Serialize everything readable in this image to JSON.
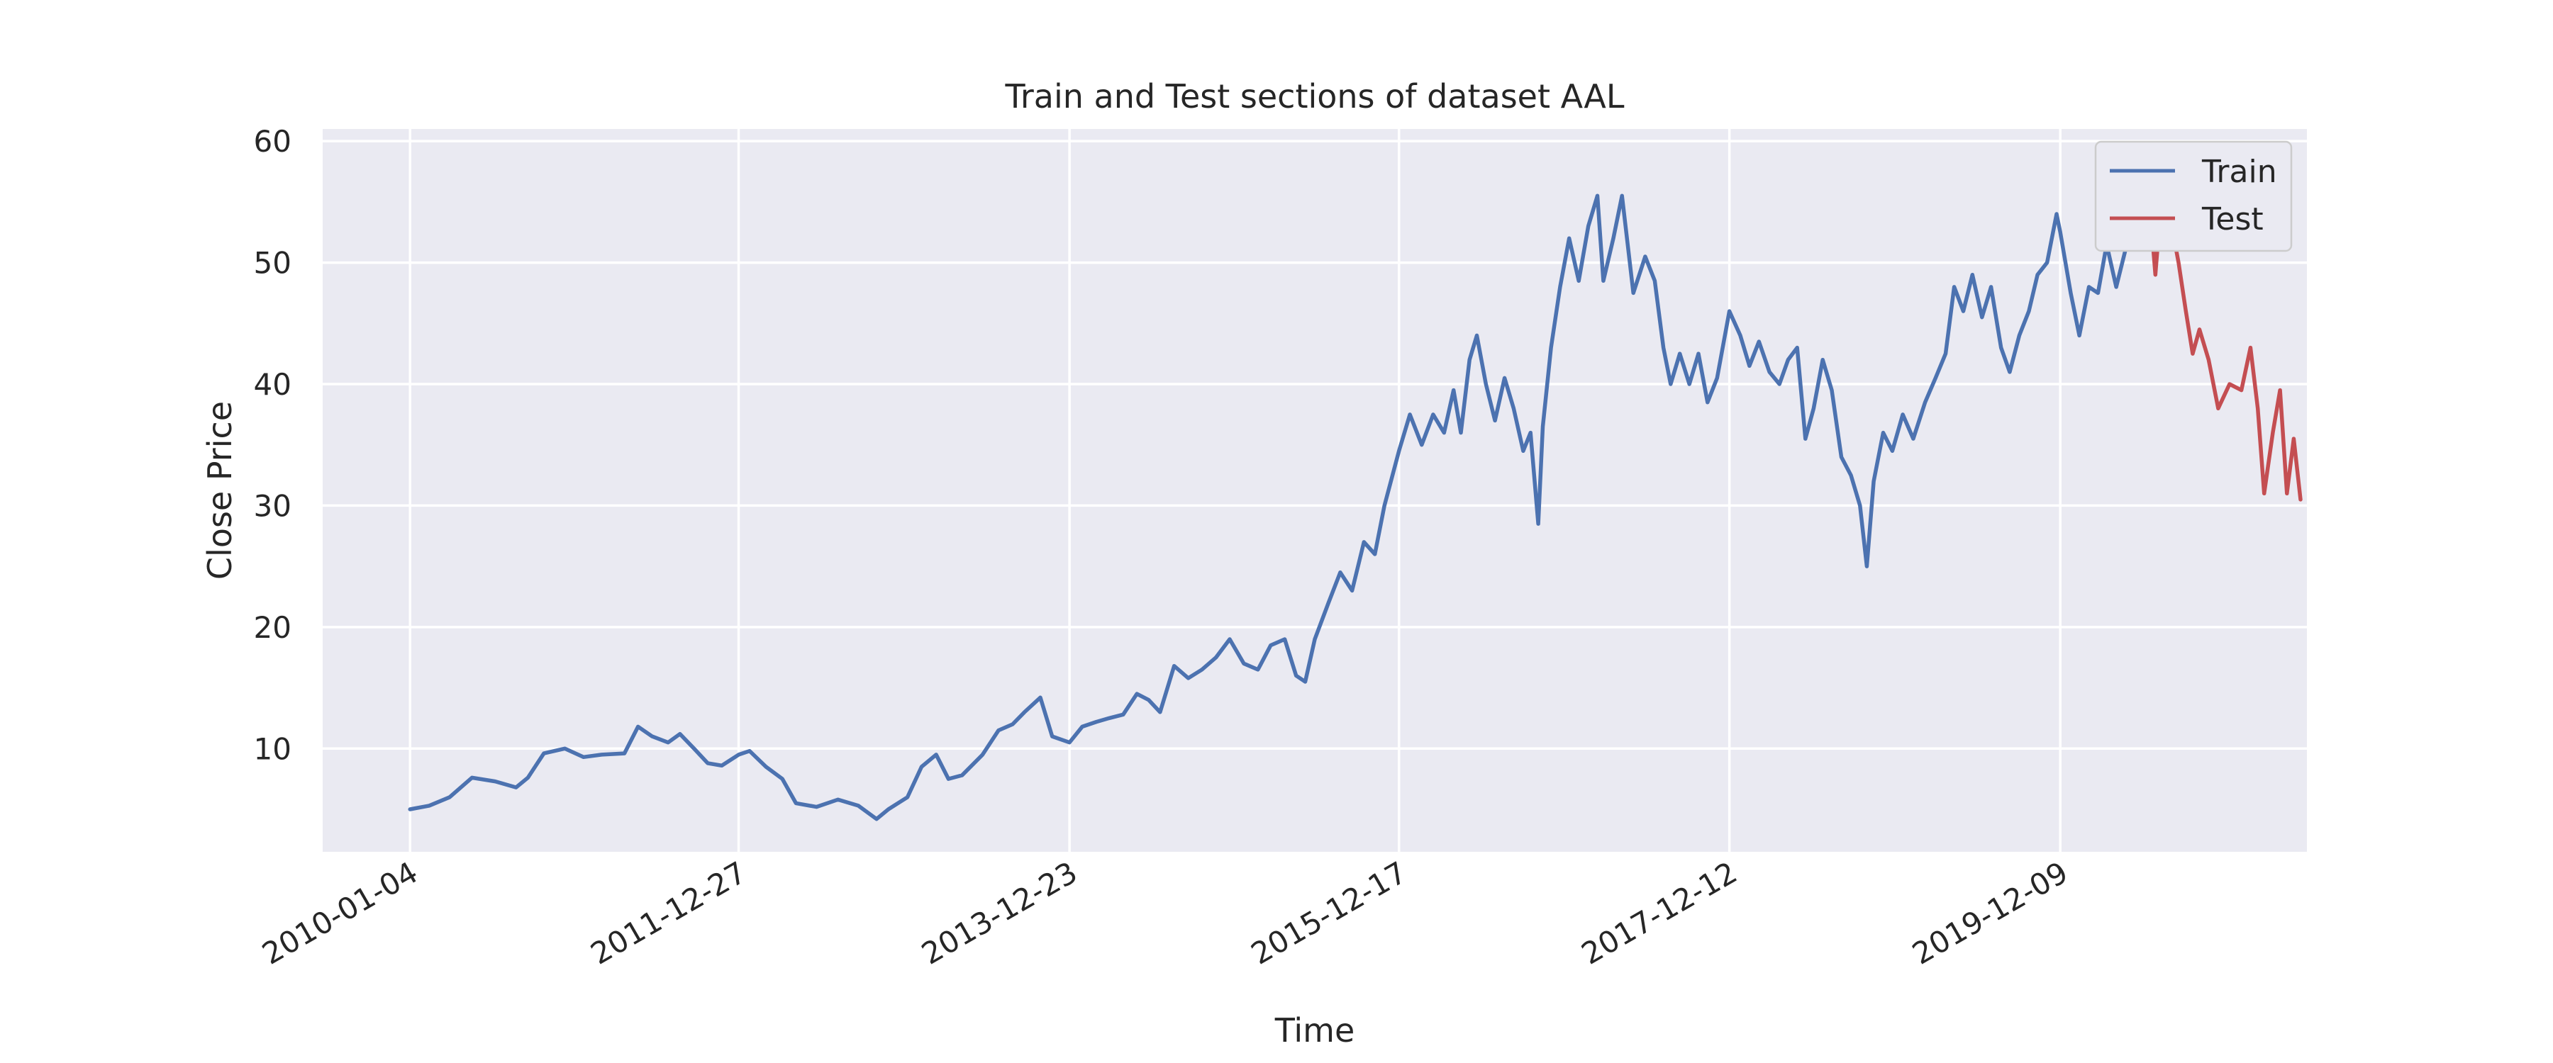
{
  "chart_data": {
    "type": "line",
    "title": "Train and Test sections of dataset AAL",
    "xlabel": "Time",
    "ylabel": "Close Price",
    "x_tick_labels": [
      "2010-01-04",
      "2011-12-27",
      "2013-12-23",
      "2015-12-17",
      "2017-12-12",
      "2019-12-09"
    ],
    "y_ticks": [
      10,
      20,
      30,
      40,
      50,
      60
    ],
    "ylim": [
      1.5,
      61
    ],
    "xlim": [
      "2009-06-26",
      "2021-06-03"
    ],
    "grid": true,
    "legend_position": "upper right",
    "background": "#eaeaf2",
    "series": [
      {
        "name": "Train",
        "color": "#4c72b0",
        "points": [
          [
            "2010-01-04",
            5.0
          ],
          [
            "2010-02-15",
            5.3
          ],
          [
            "2010-04-01",
            6.0
          ],
          [
            "2010-05-20",
            7.6
          ],
          [
            "2010-07-10",
            7.3
          ],
          [
            "2010-08-25",
            6.8
          ],
          [
            "2010-09-20",
            7.6
          ],
          [
            "2010-10-25",
            9.6
          ],
          [
            "2010-12-10",
            10.0
          ],
          [
            "2011-01-20",
            9.3
          ],
          [
            "2011-03-01",
            9.5
          ],
          [
            "2011-04-20",
            9.6
          ],
          [
            "2011-05-20",
            11.8
          ],
          [
            "2011-06-20",
            11.0
          ],
          [
            "2011-07-25",
            10.5
          ],
          [
            "2011-08-20",
            11.2
          ],
          [
            "2011-09-20",
            10.0
          ],
          [
            "2011-10-20",
            8.8
          ],
          [
            "2011-11-20",
            8.6
          ],
          [
            "2011-12-27",
            9.5
          ],
          [
            "2012-01-20",
            9.8
          ],
          [
            "2012-02-25",
            8.5
          ],
          [
            "2012-04-01",
            7.5
          ],
          [
            "2012-05-01",
            5.5
          ],
          [
            "2012-06-15",
            5.2
          ],
          [
            "2012-08-01",
            5.8
          ],
          [
            "2012-09-15",
            5.3
          ],
          [
            "2012-10-25",
            4.2
          ],
          [
            "2012-11-20",
            5.0
          ],
          [
            "2013-01-01",
            6.0
          ],
          [
            "2013-02-01",
            8.5
          ],
          [
            "2013-03-05",
            9.5
          ],
          [
            "2013-04-01",
            7.5
          ],
          [
            "2013-05-01",
            7.8
          ],
          [
            "2013-06-15",
            9.5
          ],
          [
            "2013-07-20",
            11.5
          ],
          [
            "2013-08-20",
            12.0
          ],
          [
            "2013-09-15",
            13.0
          ],
          [
            "2013-10-20",
            14.2
          ],
          [
            "2013-11-15",
            11.0
          ],
          [
            "2013-12-23",
            10.5
          ],
          [
            "2014-01-20",
            11.8
          ],
          [
            "2014-02-20",
            12.2
          ],
          [
            "2014-03-20",
            12.5
          ],
          [
            "2014-04-20",
            12.8
          ],
          [
            "2014-05-20",
            14.5
          ],
          [
            "2014-06-15",
            14.0
          ],
          [
            "2014-07-10",
            13.0
          ],
          [
            "2014-08-10",
            16.8
          ],
          [
            "2014-09-10",
            15.8
          ],
          [
            "2014-10-10",
            16.5
          ],
          [
            "2014-11-10",
            17.5
          ],
          [
            "2014-12-10",
            19.0
          ],
          [
            "2015-01-10",
            17.0
          ],
          [
            "2015-02-10",
            16.5
          ],
          [
            "2015-03-10",
            18.5
          ],
          [
            "2015-04-10",
            19.0
          ],
          [
            "2015-05-05",
            16.0
          ],
          [
            "2015-05-25",
            15.5
          ],
          [
            "2015-06-15",
            19.0
          ],
          [
            "2015-07-15",
            22.0
          ],
          [
            "2015-08-10",
            24.5
          ],
          [
            "2015-09-05",
            23.0
          ],
          [
            "2015-10-01",
            27.0
          ],
          [
            "2015-10-25",
            26.0
          ],
          [
            "2015-11-15",
            30.0
          ],
          [
            "2015-12-17",
            34.5
          ],
          [
            "2016-01-10",
            37.5
          ],
          [
            "2016-02-05",
            35.0
          ],
          [
            "2016-03-01",
            37.5
          ],
          [
            "2016-03-25",
            36.0
          ],
          [
            "2016-04-15",
            39.5
          ],
          [
            "2016-05-01",
            36.0
          ],
          [
            "2016-05-20",
            42.0
          ],
          [
            "2016-06-05",
            44.0
          ],
          [
            "2016-06-25",
            40.0
          ],
          [
            "2016-07-15",
            37.0
          ],
          [
            "2016-08-05",
            40.5
          ],
          [
            "2016-08-25",
            38.0
          ],
          [
            "2016-09-15",
            34.5
          ],
          [
            "2016-10-01",
            36.0
          ],
          [
            "2016-10-18",
            28.5
          ],
          [
            "2016-10-28",
            36.5
          ],
          [
            "2016-11-15",
            43.0
          ],
          [
            "2016-12-05",
            48.0
          ],
          [
            "2016-12-25",
            52.0
          ],
          [
            "2017-01-15",
            48.5
          ],
          [
            "2017-02-05",
            53.0
          ],
          [
            "2017-02-25",
            55.5
          ],
          [
            "2017-03-10",
            48.5
          ],
          [
            "2017-04-01",
            52.0
          ],
          [
            "2017-04-20",
            55.5
          ],
          [
            "2017-05-15",
            47.5
          ],
          [
            "2017-06-10",
            50.5
          ],
          [
            "2017-07-01",
            48.5
          ],
          [
            "2017-07-20",
            43.0
          ],
          [
            "2017-08-05",
            40.0
          ],
          [
            "2017-08-25",
            42.5
          ],
          [
            "2017-09-15",
            40.0
          ],
          [
            "2017-10-05",
            42.5
          ],
          [
            "2017-10-25",
            38.5
          ],
          [
            "2017-11-15",
            40.5
          ],
          [
            "2017-12-12",
            46.0
          ],
          [
            "2018-01-05",
            44.0
          ],
          [
            "2018-01-25",
            41.5
          ],
          [
            "2018-02-15",
            43.5
          ],
          [
            "2018-03-10",
            41.0
          ],
          [
            "2018-04-01",
            40.0
          ],
          [
            "2018-04-20",
            42.0
          ],
          [
            "2018-05-10",
            43.0
          ],
          [
            "2018-05-28",
            35.5
          ],
          [
            "2018-06-15",
            38.0
          ],
          [
            "2018-07-05",
            42.0
          ],
          [
            "2018-07-25",
            39.5
          ],
          [
            "2018-08-15",
            34.0
          ],
          [
            "2018-09-05",
            32.5
          ],
          [
            "2018-09-25",
            30.0
          ],
          [
            "2018-10-10",
            25.0
          ],
          [
            "2018-10-25",
            32.0
          ],
          [
            "2018-11-15",
            36.0
          ],
          [
            "2018-12-05",
            34.5
          ],
          [
            "2018-12-28",
            37.5
          ],
          [
            "2019-01-20",
            35.5
          ],
          [
            "2019-02-15",
            38.5
          ],
          [
            "2019-03-10",
            40.5
          ],
          [
            "2019-04-01",
            42.5
          ],
          [
            "2019-04-20",
            48.0
          ],
          [
            "2019-05-10",
            46.0
          ],
          [
            "2019-05-30",
            49.0
          ],
          [
            "2019-06-20",
            45.5
          ],
          [
            "2019-07-10",
            48.0
          ],
          [
            "2019-08-01",
            43.0
          ],
          [
            "2019-08-20",
            41.0
          ],
          [
            "2019-09-10",
            44.0
          ],
          [
            "2019-10-01",
            46.0
          ],
          [
            "2019-10-20",
            49.0
          ],
          [
            "2019-11-10",
            50.0
          ],
          [
            "2019-12-01",
            54.0
          ],
          [
            "2019-12-09",
            52.5
          ],
          [
            "2020-01-01",
            47.5
          ],
          [
            "2020-01-20",
            44.0
          ],
          [
            "2020-02-10",
            48.0
          ],
          [
            "2020-03-01",
            47.5
          ],
          [
            "2020-03-20",
            51.5
          ],
          [
            "2020-04-10",
            48.0
          ],
          [
            "2020-04-30",
            51.0
          ],
          [
            "2020-05-20",
            52.5
          ]
        ]
      },
      {
        "name": "Test",
        "color": "#c44e52",
        "points": [
          [
            "2020-05-20",
            52.5
          ],
          [
            "2020-06-01",
            53.0
          ],
          [
            "2020-06-10",
            58.0
          ],
          [
            "2020-06-22",
            55.0
          ],
          [
            "2020-07-05",
            49.0
          ],
          [
            "2020-07-20",
            56.0
          ],
          [
            "2020-08-10",
            53.0
          ],
          [
            "2020-08-25",
            50.0
          ],
          [
            "2020-09-10",
            46.0
          ],
          [
            "2020-09-25",
            42.5
          ],
          [
            "2020-10-10",
            44.5
          ],
          [
            "2020-10-30",
            42.0
          ],
          [
            "2020-11-20",
            38.0
          ],
          [
            "2020-12-15",
            40.0
          ],
          [
            "2021-01-10",
            39.5
          ],
          [
            "2021-01-30",
            43.0
          ],
          [
            "2021-02-15",
            38.0
          ],
          [
            "2021-03-01",
            31.0
          ],
          [
            "2021-03-20",
            36.0
          ],
          [
            "2021-04-05",
            39.5
          ],
          [
            "2021-04-20",
            31.0
          ],
          [
            "2021-05-05",
            35.5
          ],
          [
            "2021-05-20",
            30.5
          ]
        ]
      }
    ]
  }
}
